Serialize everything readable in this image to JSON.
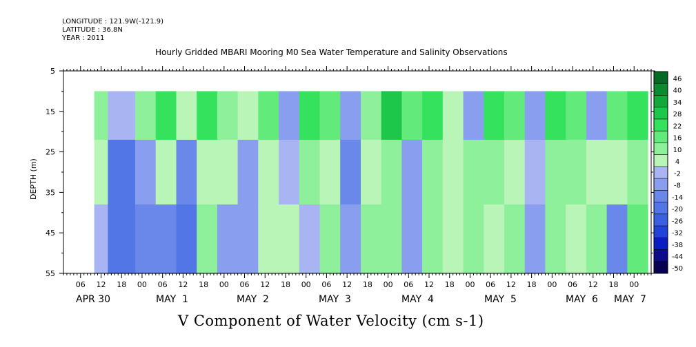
{
  "header": {
    "longitude": "LONGITUDE : 121.9W(-121.9)",
    "latitude": "LATITUDE : 36.8N",
    "year": "YEAR : 2011"
  },
  "chart_data": {
    "type": "heatmap",
    "title": "Hourly Gridded MBARI Mooring M0 Sea Water Temperature and Salinity Observations",
    "xlabel": "V Component of Water Velocity (cm s-1)",
    "ylabel": "DEPTH (m)",
    "y_axis": {
      "range": [
        5,
        55
      ],
      "inverted": true,
      "tick_labels": [
        5,
        15,
        25,
        35,
        45,
        55
      ],
      "minor_ticks": [
        10,
        20,
        30,
        40,
        50
      ]
    },
    "x_axis": {
      "start": "2011-04-30T01:00",
      "end": "2011-05-07T05:00",
      "hour_tick_labels": [
        "06",
        "12",
        "18",
        "00",
        "06",
        "12",
        "18",
        "00",
        "06",
        "12",
        "18",
        "00",
        "06",
        "12",
        "18",
        "00",
        "06",
        "12",
        "18",
        "00",
        "06",
        "12",
        "18",
        "00",
        "06",
        "12",
        "18",
        "00",
        "06",
        "12",
        "18",
        "00"
      ],
      "day_labels": [
        "APR 30",
        "MAY  1",
        "MAY  2",
        "MAY  3",
        "MAY  4",
        "MAY  5",
        "MAY  6",
        "MAY  7"
      ]
    },
    "data_extent": {
      "time_start": "2011-04-30T10:00",
      "time_end": "2011-05-07T04:00",
      "depth_top": 10,
      "depth_bottom": 55
    },
    "colorbar": {
      "levels": [
        -50,
        -44,
        -38,
        -32,
        -26,
        -20,
        -14,
        -8,
        -2,
        4,
        10,
        16,
        22,
        28,
        34,
        40,
        46
      ],
      "tick_labels": [
        "46",
        "40",
        "34",
        "28",
        "22",
        "16",
        "10",
        "4",
        "-2",
        "-8",
        "-14",
        "-20",
        "-26",
        "-32",
        "-38",
        "-44",
        "-50"
      ],
      "colors": [
        "#080052",
        "#0c0c8a",
        "#0a1dc2",
        "#2243da",
        "#3a60e0",
        "#5276e6",
        "#6a88ea",
        "#8a9ef0",
        "#a9b4f2",
        "#b8f5b6",
        "#8ef09a",
        "#62ea7a",
        "#35e25e",
        "#1cc74a",
        "#12a83c",
        "#0c8a30",
        "#056a24"
      ]
    },
    "columns": [
      {
        "from": "2011-04-30T10:00",
        "to": "2011-04-30T14:00",
        "surface": 10,
        "mid": 6,
        "deep": -2
      },
      {
        "from": "2011-04-30T14:00",
        "to": "2011-04-30T22:00",
        "surface": 2,
        "mid": -16,
        "deep": -20
      },
      {
        "from": "2011-04-30T22:00",
        "to": "2011-05-01T04:00",
        "surface": 12,
        "mid": -8,
        "deep": -14
      },
      {
        "from": "2011-05-01T04:00",
        "to": "2011-05-01T10:00",
        "surface": 22,
        "mid": 4,
        "deep": -14
      },
      {
        "from": "2011-05-01T10:00",
        "to": "2011-05-01T16:00",
        "surface": 4,
        "mid": -14,
        "deep": -20
      },
      {
        "from": "2011-05-01T16:00",
        "to": "2011-05-01T22:00",
        "surface": 22,
        "mid": 4,
        "deep": 10
      },
      {
        "from": "2011-05-01T22:00",
        "to": "2011-05-02T04:00",
        "surface": 10,
        "mid": 6,
        "deep": -8
      },
      {
        "from": "2011-05-02T04:00",
        "to": "2011-05-02T10:00",
        "surface": 4,
        "mid": -8,
        "deep": -8
      },
      {
        "from": "2011-05-02T10:00",
        "to": "2011-05-02T16:00",
        "surface": 16,
        "mid": 4,
        "deep": 4
      },
      {
        "from": "2011-05-02T16:00",
        "to": "2011-05-02T22:00",
        "surface": -8,
        "mid": -2,
        "deep": 4
      },
      {
        "from": "2011-05-02T22:00",
        "to": "2011-05-03T04:00",
        "surface": 22,
        "mid": 10,
        "deep": -2
      },
      {
        "from": "2011-05-03T04:00",
        "to": "2011-05-03T10:00",
        "surface": 16,
        "mid": 4,
        "deep": 10
      },
      {
        "from": "2011-05-03T10:00",
        "to": "2011-05-03T16:00",
        "surface": -8,
        "mid": -14,
        "deep": -8
      },
      {
        "from": "2011-05-03T16:00",
        "to": "2011-05-03T22:00",
        "surface": 10,
        "mid": 4,
        "deep": 10
      },
      {
        "from": "2011-05-03T22:00",
        "to": "2011-05-04T04:00",
        "surface": 28,
        "mid": 10,
        "deep": 10
      },
      {
        "from": "2011-05-04T04:00",
        "to": "2011-05-04T10:00",
        "surface": 16,
        "mid": -8,
        "deep": -8
      },
      {
        "from": "2011-05-04T10:00",
        "to": "2011-05-04T16:00",
        "surface": 22,
        "mid": 10,
        "deep": 10
      },
      {
        "from": "2011-05-04T16:00",
        "to": "2011-05-04T22:00",
        "surface": 4,
        "mid": 4,
        "deep": 4
      },
      {
        "from": "2011-05-04T22:00",
        "to": "2011-05-05T04:00",
        "surface": -8,
        "mid": 10,
        "deep": 10
      },
      {
        "from": "2011-05-05T04:00",
        "to": "2011-05-05T10:00",
        "surface": 22,
        "mid": 10,
        "deep": 4
      },
      {
        "from": "2011-05-05T10:00",
        "to": "2011-05-05T16:00",
        "surface": 16,
        "mid": 4,
        "deep": 10
      },
      {
        "from": "2011-05-05T16:00",
        "to": "2011-05-05T22:00",
        "surface": -8,
        "mid": -2,
        "deep": -8
      },
      {
        "from": "2011-05-05T22:00",
        "to": "2011-05-06T04:00",
        "surface": 22,
        "mid": 10,
        "deep": 10
      },
      {
        "from": "2011-05-06T04:00",
        "to": "2011-05-06T10:00",
        "surface": 16,
        "mid": 10,
        "deep": 4
      },
      {
        "from": "2011-05-06T10:00",
        "to": "2011-05-06T16:00",
        "surface": -8,
        "mid": 4,
        "deep": 10
      },
      {
        "from": "2011-05-06T16:00",
        "to": "2011-05-06T22:00",
        "surface": 16,
        "mid": 4,
        "deep": -14
      },
      {
        "from": "2011-05-06T22:00",
        "to": "2011-05-07T04:00",
        "surface": 22,
        "mid": 10,
        "deep": 16
      }
    ]
  }
}
